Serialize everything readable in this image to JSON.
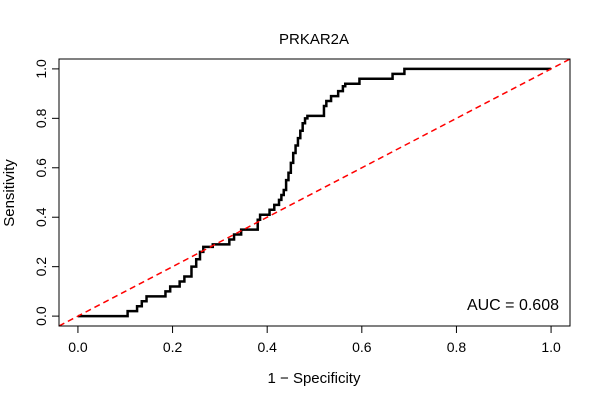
{
  "chart_data": {
    "type": "line",
    "title": "PRKAR2A",
    "xlabel": "1 − Specificity",
    "ylabel": "Sensitivity",
    "xlim": [
      -0.04,
      1.04
    ],
    "ylim": [
      -0.04,
      1.04
    ],
    "x_ticks": [
      0.0,
      0.2,
      0.4,
      0.6,
      0.8,
      1.0
    ],
    "x_tick_labels": [
      "0.0",
      "0.2",
      "0.4",
      "0.6",
      "0.8",
      "1.0"
    ],
    "y_ticks": [
      0.0,
      0.2,
      0.4,
      0.6,
      0.8,
      1.0
    ],
    "y_tick_labels": [
      "0.0",
      "0.2",
      "0.4",
      "0.6",
      "0.8",
      "1.0"
    ],
    "annotation": "AUC = 0.608",
    "grid": false,
    "series": [
      {
        "color": "#000000",
        "style": "step",
        "points": [
          [
            0.0,
            0.0
          ],
          [
            0.105,
            0.0
          ],
          [
            0.105,
            0.02
          ],
          [
            0.125,
            0.02
          ],
          [
            0.125,
            0.04
          ],
          [
            0.135,
            0.04
          ],
          [
            0.135,
            0.06
          ],
          [
            0.145,
            0.06
          ],
          [
            0.145,
            0.08
          ],
          [
            0.185,
            0.08
          ],
          [
            0.185,
            0.1
          ],
          [
            0.195,
            0.1
          ],
          [
            0.195,
            0.12
          ],
          [
            0.215,
            0.12
          ],
          [
            0.215,
            0.14
          ],
          [
            0.225,
            0.14
          ],
          [
            0.225,
            0.16
          ],
          [
            0.24,
            0.16
          ],
          [
            0.24,
            0.2
          ],
          [
            0.25,
            0.2
          ],
          [
            0.25,
            0.23
          ],
          [
            0.258,
            0.23
          ],
          [
            0.258,
            0.26
          ],
          [
            0.265,
            0.26
          ],
          [
            0.265,
            0.28
          ],
          [
            0.285,
            0.28
          ],
          [
            0.285,
            0.29
          ],
          [
            0.32,
            0.29
          ],
          [
            0.32,
            0.31
          ],
          [
            0.33,
            0.31
          ],
          [
            0.33,
            0.33
          ],
          [
            0.345,
            0.33
          ],
          [
            0.345,
            0.35
          ],
          [
            0.38,
            0.35
          ],
          [
            0.38,
            0.39
          ],
          [
            0.385,
            0.39
          ],
          [
            0.385,
            0.41
          ],
          [
            0.405,
            0.41
          ],
          [
            0.405,
            0.43
          ],
          [
            0.415,
            0.43
          ],
          [
            0.415,
            0.45
          ],
          [
            0.425,
            0.45
          ],
          [
            0.425,
            0.47
          ],
          [
            0.43,
            0.47
          ],
          [
            0.43,
            0.49
          ],
          [
            0.435,
            0.49
          ],
          [
            0.435,
            0.51
          ],
          [
            0.44,
            0.51
          ],
          [
            0.44,
            0.55
          ],
          [
            0.445,
            0.55
          ],
          [
            0.445,
            0.58
          ],
          [
            0.45,
            0.58
          ],
          [
            0.45,
            0.62
          ],
          [
            0.455,
            0.62
          ],
          [
            0.455,
            0.66
          ],
          [
            0.46,
            0.66
          ],
          [
            0.46,
            0.69
          ],
          [
            0.465,
            0.69
          ],
          [
            0.465,
            0.72
          ],
          [
            0.47,
            0.72
          ],
          [
            0.47,
            0.75
          ],
          [
            0.475,
            0.75
          ],
          [
            0.475,
            0.78
          ],
          [
            0.48,
            0.78
          ],
          [
            0.48,
            0.8
          ],
          [
            0.485,
            0.8
          ],
          [
            0.485,
            0.81
          ],
          [
            0.52,
            0.81
          ],
          [
            0.52,
            0.85
          ],
          [
            0.525,
            0.85
          ],
          [
            0.525,
            0.87
          ],
          [
            0.535,
            0.87
          ],
          [
            0.535,
            0.89
          ],
          [
            0.55,
            0.89
          ],
          [
            0.55,
            0.91
          ],
          [
            0.56,
            0.91
          ],
          [
            0.56,
            0.93
          ],
          [
            0.565,
            0.93
          ],
          [
            0.565,
            0.94
          ],
          [
            0.595,
            0.94
          ],
          [
            0.595,
            0.96
          ],
          [
            0.665,
            0.96
          ],
          [
            0.665,
            0.98
          ],
          [
            0.69,
            0.98
          ],
          [
            0.69,
            1.0
          ],
          [
            1.0,
            1.0
          ]
        ]
      },
      {
        "color": "#ff0000",
        "style": "dashed",
        "points": [
          [
            -0.04,
            -0.04
          ],
          [
            1.04,
            1.04
          ]
        ]
      }
    ]
  }
}
